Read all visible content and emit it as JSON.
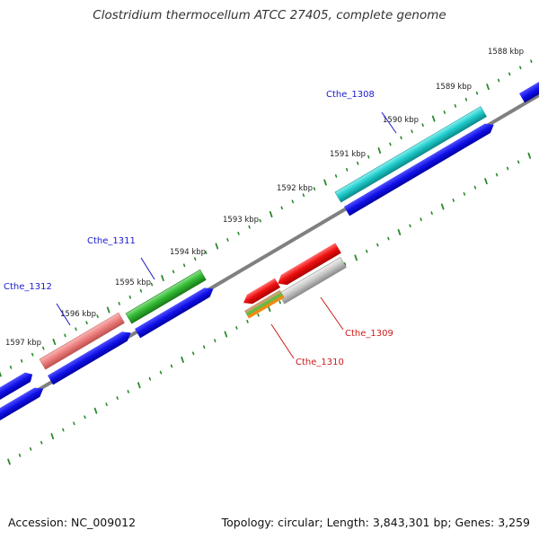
{
  "header": {
    "title": "Clostridium thermocellum ATCC 27405, complete genome"
  },
  "footer": {
    "accession": "Accession: NC_009012",
    "stats": "Topology: circular; Length: 3,843,301 bp; Genes: 3,259"
  },
  "colors": {
    "cds_arrow": "#1010e8",
    "ruler_dots": "#2a8a2a",
    "backbone": "#808080",
    "forward_label": "#1a1acc",
    "reverse_label": "#cc1a1a"
  },
  "kbp_ticks": [
    {
      "label": "1588 kbp"
    },
    {
      "label": "1589 kbp"
    },
    {
      "label": "1590 kbp"
    },
    {
      "label": "1591 kbp"
    },
    {
      "label": "1592 kbp"
    },
    {
      "label": "1593 kbp"
    },
    {
      "label": "1594 kbp"
    },
    {
      "label": "1595 kbp"
    },
    {
      "label": "1596 kbp"
    },
    {
      "label": "1597 kbp"
    }
  ],
  "genes": [
    {
      "name": "Cthe_1308",
      "strand": "forward",
      "color": "#22cccc"
    },
    {
      "name": "Cthe_1309",
      "strand": "reverse",
      "color": "#c8c8c8"
    },
    {
      "name": "Cthe_1310",
      "strand": "reverse",
      "color": "#e8a030"
    },
    {
      "name": "Cthe_1311",
      "strand": "forward",
      "color": "#33bb33"
    },
    {
      "name": "Cthe_1312",
      "strand": "forward",
      "color": "#ee8080"
    }
  ],
  "other_features": [
    {
      "color": "#ee1010"
    },
    {
      "color": "#ee1010"
    }
  ]
}
